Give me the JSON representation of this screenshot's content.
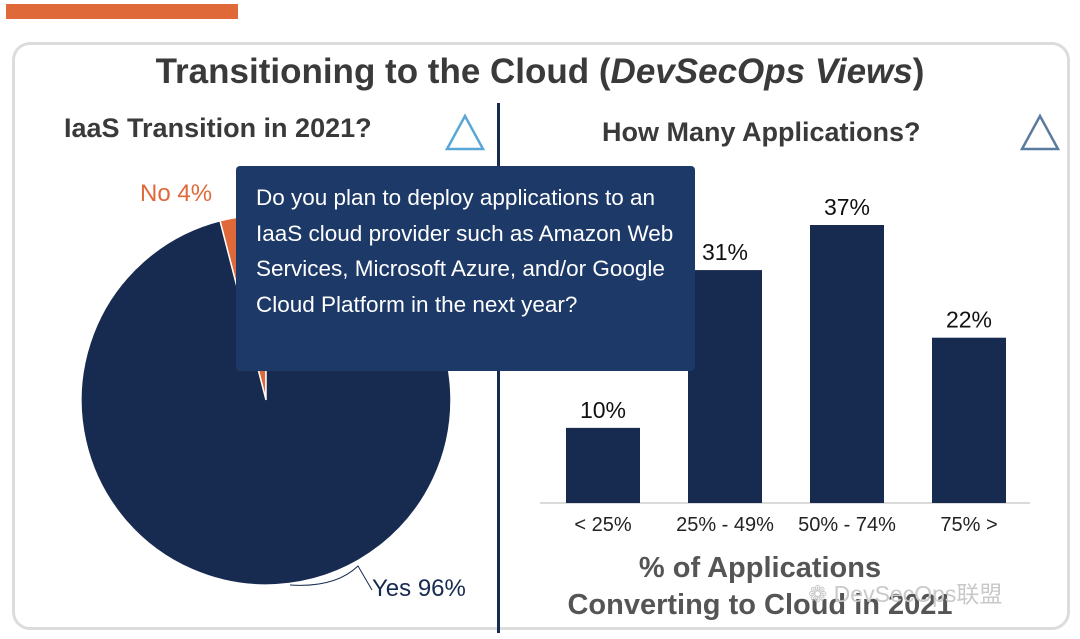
{
  "header": {
    "title_main": "Transitioning to the Cloud (",
    "title_italic": "DevSecOps Views",
    "title_close": ")"
  },
  "left_panel": {
    "title": "IaaS Transition in 2021?",
    "tooltip": "Do you plan to deploy applications to an IaaS  cloud provider such as Amazon Web Services, Microsoft Azure,  and/or Google Cloud Platform in the next year?"
  },
  "right_panel": {
    "title": "How Many Applications?",
    "xlabel_line1": "% of Applications",
    "xlabel_line2": "Converting to Cloud in 2021"
  },
  "watermark": "DevSecOps联盟",
  "colors": {
    "navy": "#172a4f",
    "orange": "#e0693a",
    "tooltip_bg": "#1d3968",
    "triangle_left": "#5aa7d6",
    "triangle_right": "#5a7aa0",
    "accent_bar": "#e0693a"
  },
  "icons": [
    "triangle-outline-icon",
    "triangle-outline-icon",
    "wechat-logo-icon"
  ],
  "chart_data": [
    {
      "type": "pie",
      "labels": [
        "No 4%",
        "Yes 96%"
      ],
      "categories": [
        "No",
        "Yes"
      ],
      "values": [
        4,
        96
      ]
    },
    {
      "type": "bar",
      "categories": [
        "< 25%",
        "25% - 49%",
        "50% - 74%",
        "75% >"
      ],
      "values": [
        10,
        31,
        37,
        22
      ],
      "data_labels": [
        "10%",
        "31%",
        "37%",
        "22%"
      ],
      "xlabel": "% of Applications Converting to Cloud in 2021",
      "ylim": [
        0,
        37
      ]
    }
  ]
}
